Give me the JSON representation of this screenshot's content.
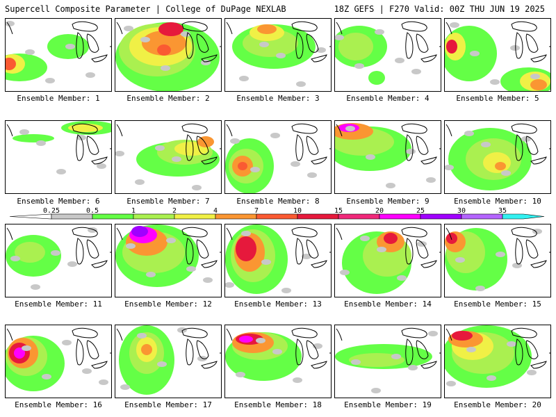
{
  "header": {
    "title": "Supercell Composite Parameter | College of DuPage NEXLAB",
    "run_info": "18Z GEFS | F270 Valid: 00Z THU JUN 19 2025"
  },
  "legend": {
    "ticks": [
      "0.25",
      "0.5",
      "1",
      "2",
      "4",
      "7",
      "10",
      "15",
      "20",
      "25",
      "30",
      "35"
    ],
    "colors": [
      "#c8c8c8",
      "#64ff46",
      "#aaf050",
      "#f0f046",
      "#fa9632",
      "#fa5a32",
      "#e6193c",
      "#f0287a",
      "#ff00ff",
      "#a000ff",
      "#b464ff",
      "#32f0f0"
    ]
  },
  "panels": [
    {
      "label": "Ensemble Member: 1"
    },
    {
      "label": "Ensemble Member: 2"
    },
    {
      "label": "Ensemble Member: 3"
    },
    {
      "label": "Ensemble Member: 4"
    },
    {
      "label": "Ensemble Member: 5"
    },
    {
      "label": "Ensemble Member: 6"
    },
    {
      "label": "Ensemble Member: 7"
    },
    {
      "label": "Ensemble Member: 8"
    },
    {
      "label": "Ensemble Member: 9"
    },
    {
      "label": "Ensemble Member: 10"
    },
    {
      "label": "Ensemble Member: 11"
    },
    {
      "label": "Ensemble Member: 12"
    },
    {
      "label": "Ensemble Member: 13"
    },
    {
      "label": "Ensemble Member: 14"
    },
    {
      "label": "Ensemble Member: 15"
    },
    {
      "label": "Ensemble Member: 16"
    },
    {
      "label": "Ensemble Member: 17"
    },
    {
      "label": "Ensemble Member: 18"
    },
    {
      "label": "Ensemble Member: 19"
    },
    {
      "label": "Ensemble Member: 20"
    }
  ]
}
